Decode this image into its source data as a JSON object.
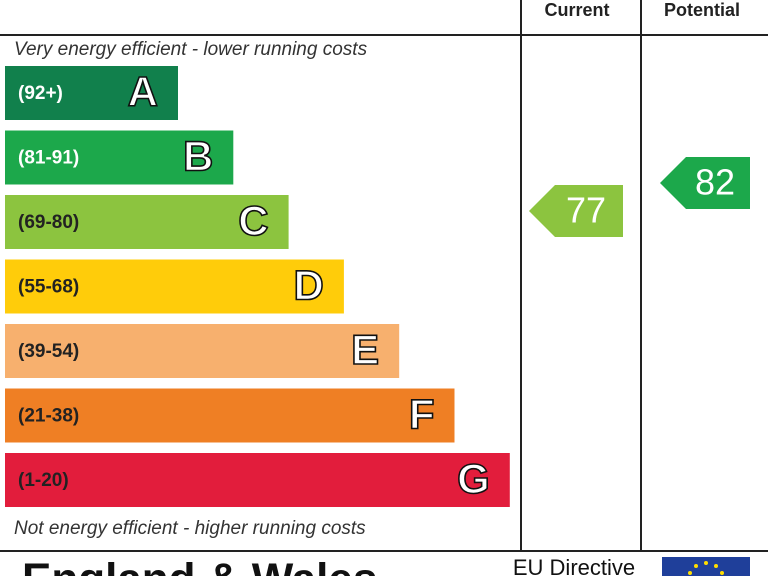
{
  "header": {
    "current": "Current",
    "potential": "Potential"
  },
  "top_note": "Very energy efficient - lower running costs",
  "bottom_note": "Not energy efficient - higher running costs",
  "bands": [
    {
      "range": "(92+)",
      "letter": "A",
      "color": "#11804c",
      "text_color": "#ffffff"
    },
    {
      "range": "(81-91)",
      "letter": "B",
      "color": "#1ca84b",
      "text_color": "#ffffff"
    },
    {
      "range": "(69-80)",
      "letter": "C",
      "color": "#8cc43f",
      "text_color": "#222222"
    },
    {
      "range": "(55-68)",
      "letter": "D",
      "color": "#ffcc0a",
      "text_color": "#222222"
    },
    {
      "range": "(39-54)",
      "letter": "E",
      "color": "#f7b06e",
      "text_color": "#222222"
    },
    {
      "range": "(21-38)",
      "letter": "F",
      "color": "#ef7f24",
      "text_color": "#222222"
    },
    {
      "range": "(1-20)",
      "letter": "G",
      "color": "#e21d3c",
      "text_color": "#222222"
    }
  ],
  "current": {
    "value": 77,
    "color": "#8cc43f"
  },
  "potential": {
    "value": 82,
    "color": "#1ca84b"
  },
  "footer": {
    "region": "England & Wales",
    "directive": "EU Directive"
  }
}
